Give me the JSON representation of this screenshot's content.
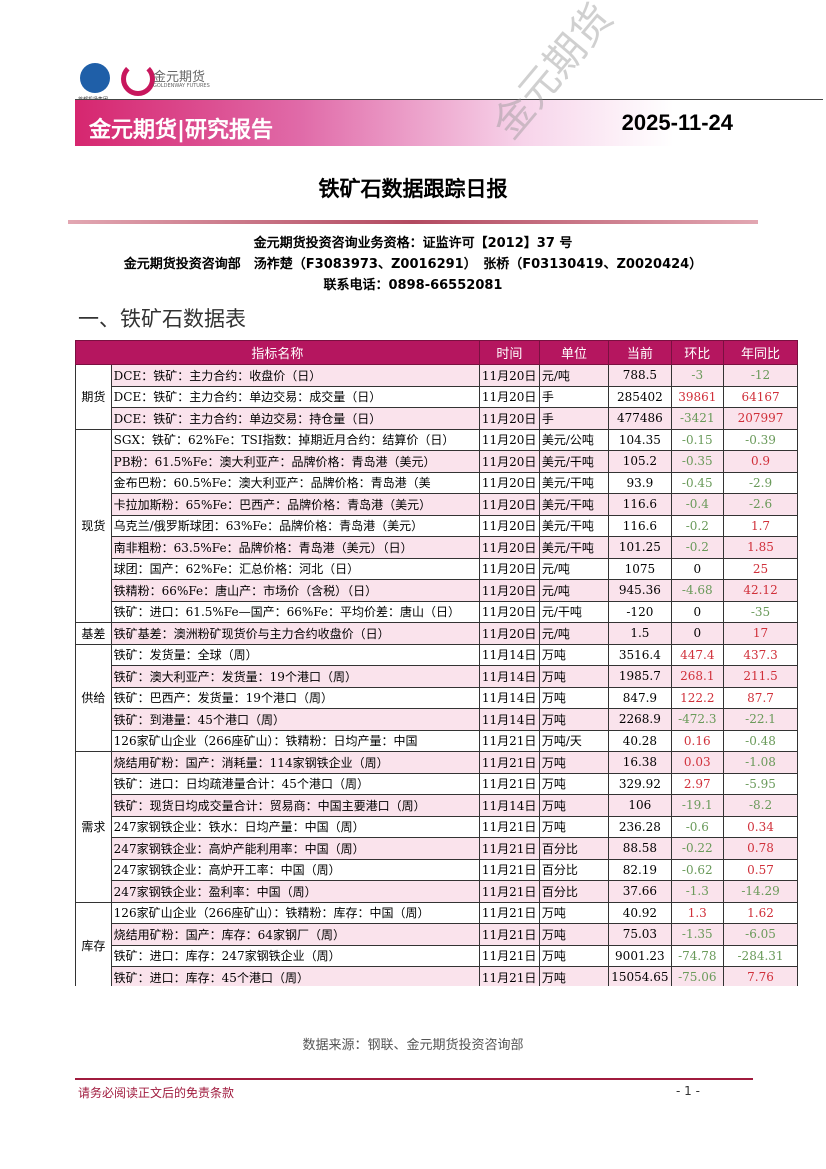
{
  "header": {
    "logo_left_text": "首都机场集团",
    "logo_right_text": "金元期货",
    "logo_right_sub": "GOLDENWAY FUTURES",
    "banner_title": "金元期货|研究报告",
    "date": "2025-11-24",
    "watermark": "金元期货"
  },
  "title": "铁矿石数据跟踪日报",
  "info": {
    "line1": "金元期货投资咨询业务资格：证监许可【2012】37 号",
    "line2": "金元期货投资咨询部　汤祚楚（F3083973、Z0016291）　张桥（F03130419、Z0020424）",
    "line3": "联系电话：0898-66552081"
  },
  "section_title": "一、铁矿石数据表",
  "table": {
    "headers": [
      "指标名称",
      "时间",
      "单位",
      "当前",
      "环比",
      "年同比"
    ],
    "groups": [
      {
        "name": "期货",
        "rows": [
          [
            "DCE：铁矿：主力合约：收盘价（日）",
            "11月20日",
            "元/吨",
            "788.5",
            "-3",
            "-12"
          ],
          [
            "DCE：铁矿：主力合约：单边交易：成交量（日）",
            "11月20日",
            "手",
            "285402",
            "39861",
            "64167"
          ],
          [
            "DCE：铁矿：主力合约：单边交易：持仓量（日）",
            "11月20日",
            "手",
            "477486",
            "-3421",
            "207997"
          ]
        ]
      },
      {
        "name": "现货",
        "rows": [
          [
            "SGX：铁矿：62%Fe：TSI指数：掉期近月合约：结算价（日）",
            "11月20日",
            "美元/公吨",
            "104.35",
            "-0.15",
            "-0.39"
          ],
          [
            "PB粉：61.5%Fe：澳大利亚产：品牌价格：青岛港（美元）",
            "11月20日",
            "美元/干吨",
            "105.2",
            "-0.35",
            "0.9"
          ],
          [
            "金布巴粉：60.5%Fe：澳大利亚产：品牌价格：青岛港（美",
            "11月20日",
            "美元/干吨",
            "93.9",
            "-0.45",
            "-2.9"
          ],
          [
            "卡拉加斯粉：65%Fe：巴西产：品牌价格：青岛港（美元）",
            "11月20日",
            "美元/干吨",
            "116.6",
            "-0.4",
            "-2.6"
          ],
          [
            "乌克兰/俄罗斯球团：63%Fe：品牌价格：青岛港（美元）",
            "11月20日",
            "美元/干吨",
            "116.6",
            "-0.2",
            "1.7"
          ],
          [
            "南非粗粉：63.5%Fe：品牌价格：青岛港（美元）（日）",
            "11月20日",
            "美元/干吨",
            "101.25",
            "-0.2",
            "1.85"
          ],
          [
            "球团：国产：62%Fe：汇总价格：河北（日）",
            "11月20日",
            "元/吨",
            "1075",
            "0",
            "25"
          ],
          [
            "铁精粉：66%Fe：唐山产：市场价（含税）（日）",
            "11月20日",
            "元/吨",
            "945.36",
            "-4.68",
            "42.12"
          ],
          [
            "铁矿：进口：61.5%Fe—国产：66%Fe：平均价差：唐山（日）",
            "11月20日",
            "元/干吨",
            "-120",
            "0",
            "-35"
          ]
        ]
      },
      {
        "name": "基差",
        "rows": [
          [
            "铁矿基差：澳洲粉矿现货价与主力合约收盘价（日）",
            "11月20日",
            "元/吨",
            "1.5",
            "0",
            "17"
          ]
        ]
      },
      {
        "name": "供给",
        "rows": [
          [
            "铁矿：发货量：全球（周）",
            "11月14日",
            "万吨",
            "3516.4",
            "447.4",
            "437.3"
          ],
          [
            "铁矿：澳大利亚产：发货量：19个港口（周）",
            "11月14日",
            "万吨",
            "1985.7",
            "268.1",
            "211.5"
          ],
          [
            "铁矿：巴西产：发货量：19个港口（周）",
            "11月14日",
            "万吨",
            "847.9",
            "122.2",
            "87.7"
          ],
          [
            "铁矿：到港量：45个港口（周）",
            "11月14日",
            "万吨",
            "2268.9",
            "-472.3",
            "-22.1"
          ],
          [
            "126家矿山企业（266座矿山）：铁精粉：日均产量：中国",
            "11月21日",
            "万吨/天",
            "40.28",
            "0.16",
            "-0.48"
          ]
        ]
      },
      {
        "name": "需求",
        "rows": [
          [
            "烧结用矿粉：国产：消耗量：114家钢铁企业（周）",
            "11月21日",
            "万吨",
            "16.38",
            "0.03",
            "-1.08"
          ],
          [
            "铁矿：进口：日均疏港量合计：45个港口（周）",
            "11月21日",
            "万吨",
            "329.92",
            "2.97",
            "-5.95"
          ],
          [
            "铁矿：现货日均成交量合计：贸易商：中国主要港口（周）",
            "11月14日",
            "万吨",
            "106",
            "-19.1",
            "-8.2"
          ],
          [
            "247家钢铁企业：铁水：日均产量：中国（周）",
            "11月21日",
            "万吨",
            "236.28",
            "-0.6",
            "0.34"
          ],
          [
            "247家钢铁企业：高炉产能利用率：中国（周）",
            "11月21日",
            "百分比",
            "88.58",
            "-0.22",
            "0.78"
          ],
          [
            "247家钢铁企业：高炉开工率：中国（周）",
            "11月21日",
            "百分比",
            "82.19",
            "-0.62",
            "0.57"
          ],
          [
            "247家钢铁企业：盈利率：中国（周）",
            "11月21日",
            "百分比",
            "37.66",
            "-1.3",
            "-14.29"
          ]
        ]
      },
      {
        "name": "库存",
        "rows": [
          [
            "126家矿山企业（266座矿山）：铁精粉：库存：中国（周）",
            "11月21日",
            "万吨",
            "40.92",
            "1.3",
            "1.62"
          ],
          [
            "烧结用矿粉：国产：库存：64家钢厂（周）",
            "11月21日",
            "万吨",
            "75.03",
            "-1.35",
            "-6.05"
          ],
          [
            "铁矿：进口：库存：247家钢铁企业（周）",
            "11月21日",
            "万吨",
            "9001.23",
            "-74.78",
            "-284.31"
          ],
          [
            "铁矿：进口：库存：45个港口（周）",
            "11月21日",
            "万吨",
            "15054.65",
            "-75.06",
            "7.76"
          ]
        ]
      }
    ]
  },
  "source": "数据来源：钢联、金元期货投资咨询部",
  "footer": {
    "disclaimer": "请务必阅读正文后的免责条款",
    "page": "- 1 -"
  },
  "colors": {
    "header_bg": "#b5165f",
    "row_pink": "#fae3ec",
    "positive": "#d0303a",
    "negative": "#6a9a5a"
  }
}
